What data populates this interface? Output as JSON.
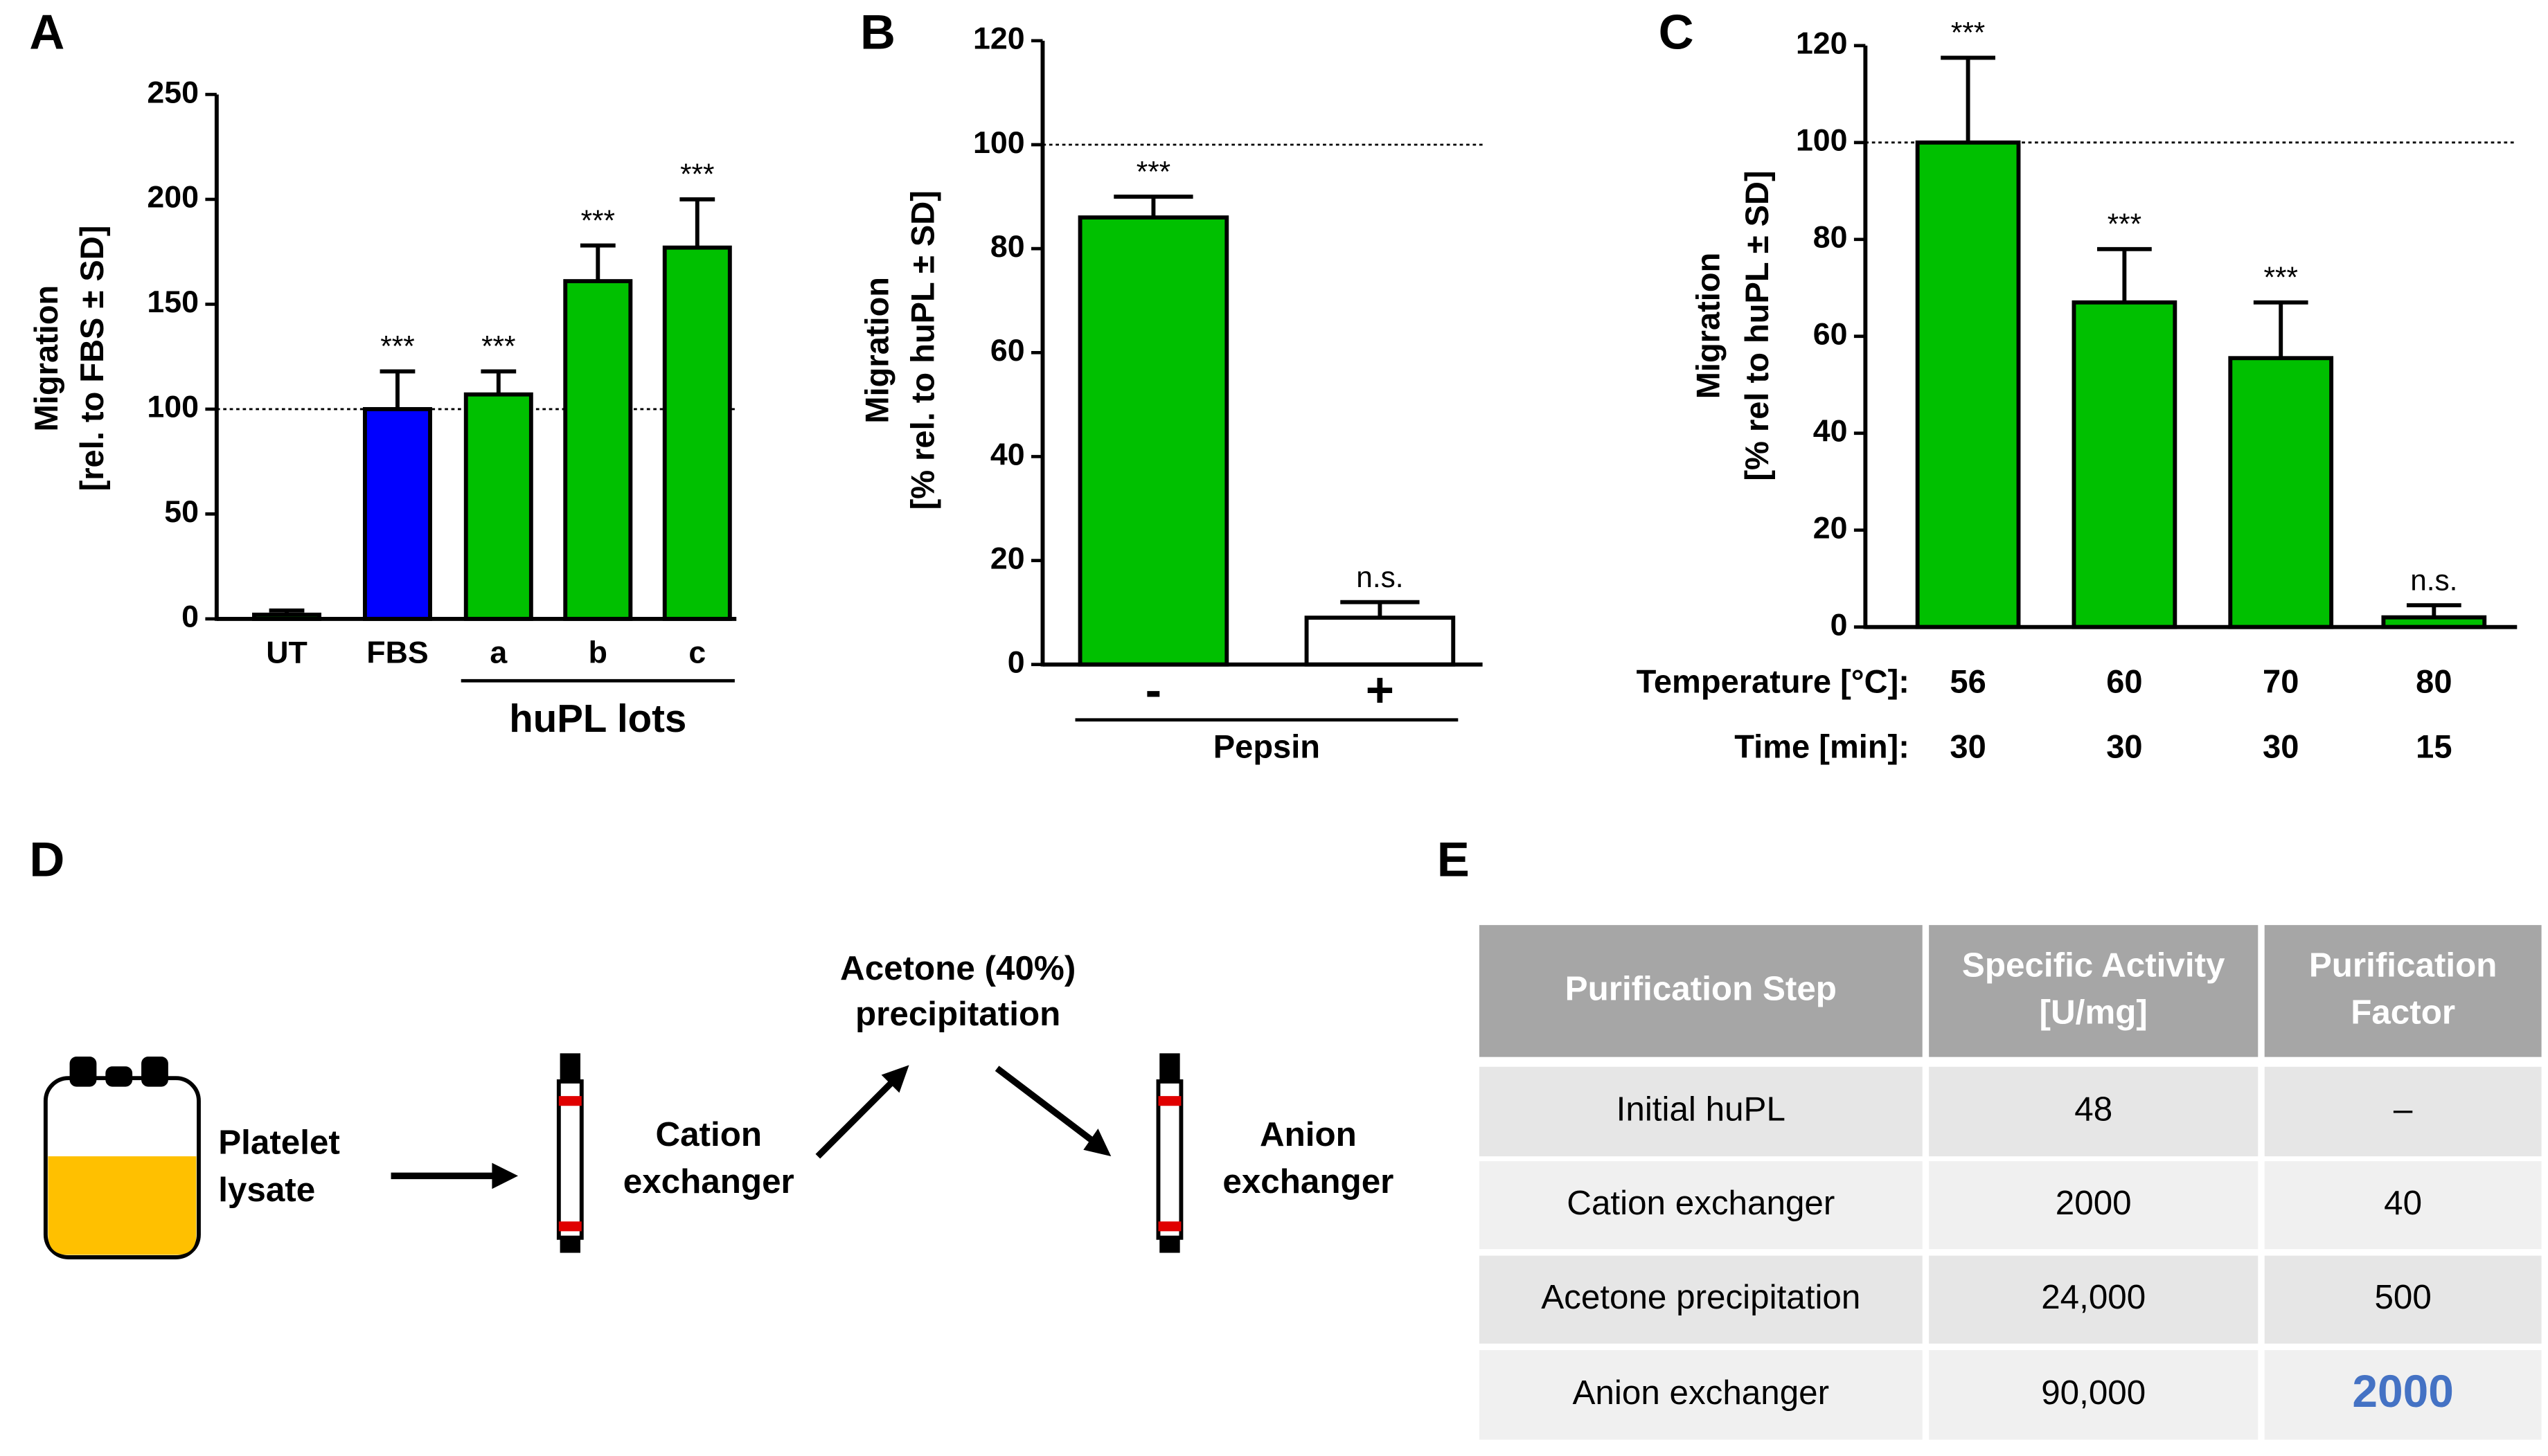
{
  "chart_data": [
    {
      "type": "bar",
      "panel": "A",
      "y_label": [
        "Migration",
        "[rel. to FBS ± SD]"
      ],
      "categories": [
        "UT",
        "FBS",
        "a",
        "b",
        "c"
      ],
      "values": [
        2,
        100,
        107,
        161,
        177
      ],
      "errors": [
        2,
        18,
        11,
        17,
        23
      ],
      "colors": [
        "#00c000",
        "#0000ff",
        "#00c000",
        "#00c000",
        "#00c000"
      ],
      "annotations": [
        null,
        "***",
        "***",
        "***",
        "***"
      ],
      "group_label": "huPL lots",
      "ylim": [
        0,
        250
      ],
      "yticks": [
        0,
        50,
        100,
        150,
        200,
        250
      ],
      "reference_line": 100
    },
    {
      "type": "bar",
      "panel": "B",
      "y_label": [
        "Migration",
        "[% rel. to huPL ± SD]"
      ],
      "categories": [
        "-",
        "+"
      ],
      "values": [
        86,
        9
      ],
      "errors": [
        4,
        3
      ],
      "colors": [
        "#00c000",
        "#ffffff"
      ],
      "annotations": [
        "***",
        "n.s."
      ],
      "group_label": "Pepsin",
      "ylim": [
        0,
        120
      ],
      "yticks": [
        0,
        20,
        40,
        60,
        80,
        100,
        120
      ],
      "reference_line": 100
    },
    {
      "type": "bar",
      "panel": "C",
      "y_label": [
        "Migration",
        "[% rel to huPL ± SD]"
      ],
      "categories": [
        "56",
        "60",
        "70",
        "80"
      ],
      "values": [
        100,
        67,
        55.5,
        2
      ],
      "errors": [
        17.5,
        11,
        11.5,
        2.5
      ],
      "colors": [
        "#00c000",
        "#00c000",
        "#00c000",
        "#00c000"
      ],
      "annotations": [
        "***",
        "***",
        "***",
        "n.s."
      ],
      "row_labels": [
        "Temperature [°C]:",
        "Time [min]:"
      ],
      "second_row": [
        "30",
        "30",
        "30",
        "15"
      ],
      "ylim": [
        0,
        120
      ],
      "yticks": [
        0,
        20,
        40,
        60,
        80,
        100,
        120
      ],
      "reference_line": 100
    }
  ],
  "diagram": {
    "panel": "D",
    "nodes": [
      {
        "label": [
          "Platelet",
          "lysate"
        ]
      },
      {
        "label": [
          "Cation",
          "exchanger"
        ]
      },
      {
        "label": [
          "Acetone (40%)",
          "precipitation"
        ]
      },
      {
        "label": [
          "Anion",
          "exchanger"
        ]
      }
    ]
  },
  "table": {
    "panel": "E",
    "header": [
      [
        "Purification Step"
      ],
      [
        "Specific Activity",
        "[U/mg]"
      ],
      [
        "Purification",
        "Factor"
      ]
    ],
    "rows": [
      [
        "Initial huPL",
        "48",
        "–"
      ],
      [
        "Cation exchanger",
        "2000",
        "40"
      ],
      [
        "Acetone precipitation",
        "24,000",
        "500"
      ],
      [
        "Anion exchanger",
        "90,000",
        "2000"
      ]
    ]
  }
}
